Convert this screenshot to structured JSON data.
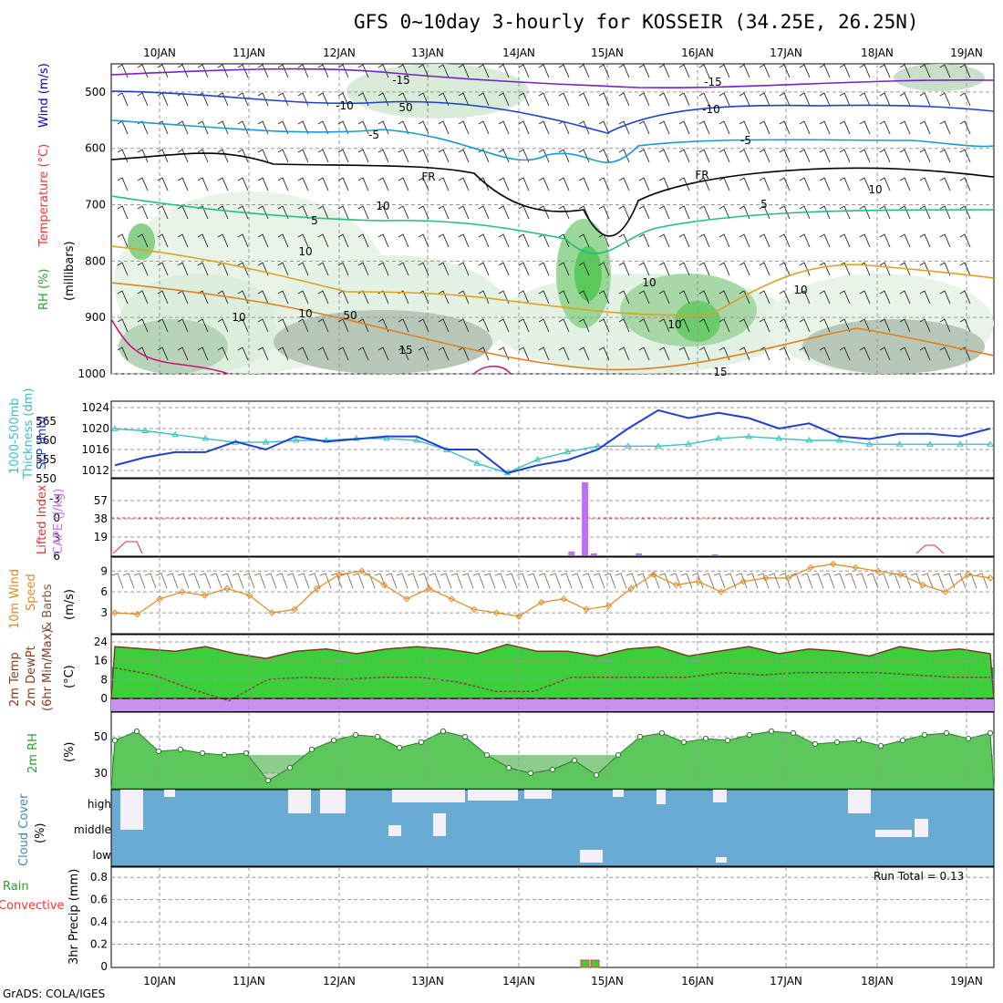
{
  "title": "GFS 0~10day 3-hourly for KOSSEIR (34.25E, 26.25N)",
  "credit": "GrADS: COLA/IGES",
  "run_total": "Run Total = 0.13",
  "colors": {
    "rh": "#2ca02c",
    "temp": "#ff0000",
    "wind": "#0000ff",
    "slp": "#1f3fcf",
    "thick": "#3cbfbf",
    "li": "#e03030",
    "cape": "#c070f0",
    "wspd": "#e08a20",
    "t2m_fill": "#3ccf3c",
    "dew_fill": "#4a8ae0",
    "cloud": "#6aabd4",
    "precip_total": "#3ccf3c",
    "precip_conv": "#ff3030"
  },
  "x_axis": {
    "ticks": [
      "10JAN",
      "11JAN",
      "12JAN",
      "13JAN",
      "14JAN",
      "15JAN",
      "16JAN",
      "17JAN",
      "18JAN",
      "19JAN"
    ],
    "labels_top": [
      "10JAN",
      "11JAN",
      "12JAN",
      "13JAN",
      "14JAN",
      "15JAN",
      "16JAN",
      "17JAN",
      "18JAN",
      "19JAN"
    ],
    "labels_bottom": [
      "10JAN",
      "11JAN",
      "12JAN",
      "13JAN",
      "14JAN",
      "15JAN",
      "16JAN",
      "17JAN",
      "18JAN",
      "19JAN"
    ]
  },
  "panel_labels": {
    "p1": [
      "RH (%)",
      "Temperature (°C)",
      "Wind (m/s)",
      "(millibars)"
    ],
    "p2a": "1000-500mb",
    "p2b": "Thickness (dm)",
    "p2c": "SLP (mb)",
    "p3a": "Lifted Index",
    "p3b": "CAPE (J/kg)",
    "p4a": "10m Wind",
    "p4b": "Speed",
    "p4c": "& Barbs",
    "p4d": "(m/s)",
    "p5a": "2m Temp",
    "p5b": "2m DewPt",
    "p5c": "(6hr Min/Max)",
    "p5d": "(°C)",
    "p6a": "2m RH",
    "p6b": "(%)",
    "p7a": "Cloud Cover",
    "p7b": "(%)",
    "p8a": "Total / Rain",
    "p8b": "Convective",
    "p8c": "3hr Precip (mm)"
  },
  "chart_data": [
    {
      "type": "area",
      "panel": "Upper air cross-section",
      "ylabel": "millibars",
      "y_ticks": [
        "500",
        "600",
        "700",
        "800",
        "900",
        "1000"
      ],
      "contour_labels": {
        "temp": [
          "-15",
          "-10",
          "-5",
          "FR",
          "5",
          "10",
          "15",
          "-15",
          "-10",
          "-5",
          "FR",
          "5",
          "10",
          "15"
        ],
        "rh": [
          "50",
          "10",
          "10",
          "10",
          "10",
          "10",
          "50",
          "10"
        ]
      },
      "temperature_levels_C": [
        -15,
        -10,
        -5,
        0,
        5,
        10,
        15
      ],
      "freezing_level_mb": [
        620,
        615,
        610,
        625,
        630,
        640,
        650,
        680,
        700,
        760,
        640,
        630,
        625,
        640,
        650
      ]
    },
    {
      "type": "line",
      "panel": "SLP / Thickness",
      "y_ticks_slp": [
        "1012",
        "1016",
        "1020",
        "1024"
      ],
      "y_ticks_thick": [
        "550",
        "555",
        "560",
        "565"
      ],
      "slp_mb": [
        1013,
        1014.5,
        1015.5,
        1015.5,
        1017.5,
        1016,
        1018.5,
        1017.5,
        1018,
        1018.5,
        1018.5,
        1016,
        1016,
        1011.5,
        1013,
        1014,
        1016,
        1020,
        1023.5,
        1022,
        1023,
        1022,
        1020,
        1021,
        1018.5,
        1018,
        1019,
        1019,
        1018.5,
        1020
      ],
      "thickness_dm": [
        563,
        562.5,
        561.5,
        560.5,
        559.5,
        559.5,
        560,
        560,
        560.5,
        560.5,
        560,
        557.5,
        554,
        551.5,
        555,
        557,
        558.5,
        558.5,
        558.5,
        559,
        560.5,
        561,
        560.5,
        560,
        560,
        559,
        559,
        559,
        559,
        559
      ]
    },
    {
      "type": "bar",
      "panel": "Lifted Index / CAPE",
      "y_ticks_li": [
        "-3",
        "0",
        "3",
        "6"
      ],
      "y_ticks_cape": [
        "19",
        "38",
        "57"
      ],
      "cape_bars_Jkg": [
        [
          14.6,
          4
        ],
        [
          14.75,
          76
        ],
        [
          14.85,
          2
        ],
        [
          15.35,
          2
        ],
        [
          16.2,
          1
        ]
      ]
    },
    {
      "type": "line",
      "panel": "10m Wind Speed",
      "y_ticks": [
        "3",
        "6",
        "9"
      ],
      "speed_ms": [
        3,
        2.8,
        5,
        6,
        5.5,
        6.5,
        5.5,
        3,
        3.5,
        6.5,
        8.5,
        9,
        7,
        5,
        6.5,
        5,
        3.5,
        3,
        2.5,
        4.5,
        5,
        3.5,
        4,
        6.5,
        8.5,
        7,
        7.5,
        6,
        7.5,
        8,
        8,
        9.5,
        10,
        9.5,
        9,
        8.5,
        7,
        6,
        8.5,
        8
      ]
    },
    {
      "type": "area",
      "panel": "2m Temp / DewPt",
      "y_ticks": [
        "0",
        "8",
        "16",
        "24"
      ],
      "temp_C": [
        22,
        21,
        20,
        22,
        19,
        17,
        20,
        21,
        19,
        21,
        22,
        21,
        19,
        23,
        20,
        20,
        18,
        21,
        22,
        18,
        20,
        22,
        19,
        21,
        20,
        18,
        22,
        20,
        21,
        19
      ],
      "dewpoint_C": [
        13,
        10,
        4,
        -1,
        8,
        9,
        8,
        9,
        9,
        7,
        3,
        3,
        9,
        9,
        9,
        9,
        11,
        10,
        11,
        11,
        11,
        10,
        9,
        9
      ],
      "freezing_line_C": 0
    },
    {
      "type": "area",
      "panel": "2m RH",
      "y_ticks": [
        "30",
        "50"
      ],
      "rh_pct": [
        48,
        53,
        42,
        43,
        41,
        40,
        41,
        26,
        33,
        43,
        48,
        51,
        50,
        44,
        47,
        53,
        50,
        40,
        33,
        30,
        32,
        37,
        29,
        40,
        50,
        52,
        47,
        49,
        48,
        51,
        53,
        52,
        46,
        47,
        48,
        45,
        48,
        51,
        52,
        49,
        52
      ]
    },
    {
      "type": "bar",
      "panel": "Cloud Cover",
      "y_categories": [
        "high",
        "middle",
        "low"
      ]
    },
    {
      "type": "bar",
      "panel": "3hr Precip",
      "y_ticks": [
        "0",
        "0.2",
        "0.4",
        "0.6",
        "0.8"
      ],
      "precip_mm": [
        [
          14.72,
          0.02
        ],
        [
          14.82,
          0.02
        ]
      ]
    }
  ]
}
